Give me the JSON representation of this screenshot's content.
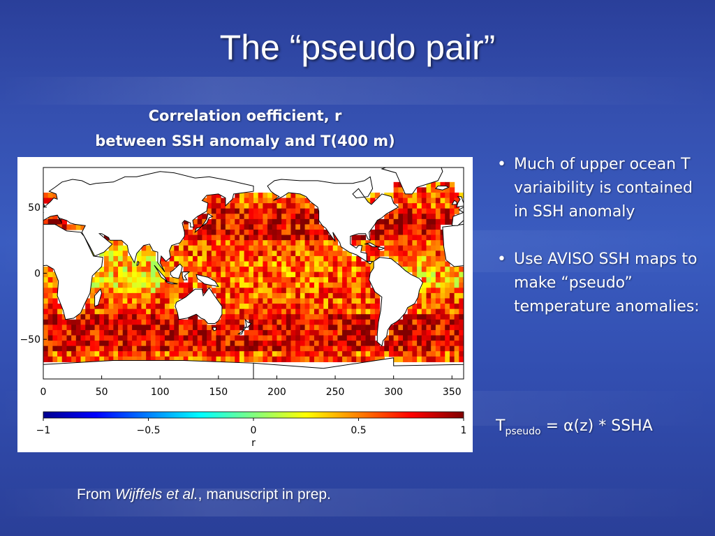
{
  "slide": {
    "title": "The “pseudo pair”",
    "map_title_line1": "Correlation oefficient, r",
    "map_title_line2": "between SSH anomaly and T(400 m)",
    "bullets": [
      "Much of upper ocean T variaibility is contained in SSH anomaly",
      "Use AVISO SSH maps to make “pseudo” temperature anomalies:"
    ],
    "formula": {
      "lhs": "T",
      "lhs_sub": "pseudo",
      "equals": "=",
      "alpha": "α",
      "rhs": "(z) * SSHA"
    },
    "citation": {
      "prefix": "From ",
      "authors": "Wijffels et al.",
      "suffix": ", manuscript in prep."
    }
  },
  "chart_data": {
    "type": "heatmap",
    "title": "Correlation oefficient, r between SSH anomaly and T(400 m)",
    "x_ticks": [
      0,
      50,
      100,
      150,
      200,
      250,
      300,
      350
    ],
    "y_ticks": [
      50,
      0,
      -50
    ],
    "xlim": [
      0,
      360
    ],
    "ylim": [
      -80,
      80
    ],
    "colorbar": {
      "label": "r",
      "ticks": [
        -1,
        -0.5,
        0,
        0.5,
        1
      ],
      "range": [
        -1,
        1
      ],
      "colormap": "jet"
    },
    "regions_r": [
      {
        "region": "North Pacific mid-latitudes",
        "r": 0.85
      },
      {
        "region": "South Indian Ocean 30-50S",
        "r": 0.85
      },
      {
        "region": "Southern Ocean 40-60S",
        "r": 0.8
      },
      {
        "region": "Tropical Pacific",
        "r": 0.75
      },
      {
        "region": "North Atlantic",
        "r": 0.7
      },
      {
        "region": "Equatorial Indian Ocean",
        "r": 0.55
      },
      {
        "region": "Tropical Atlantic",
        "r": 0.5
      },
      {
        "region": "Arabian Sea",
        "r": 0.45
      }
    ]
  }
}
